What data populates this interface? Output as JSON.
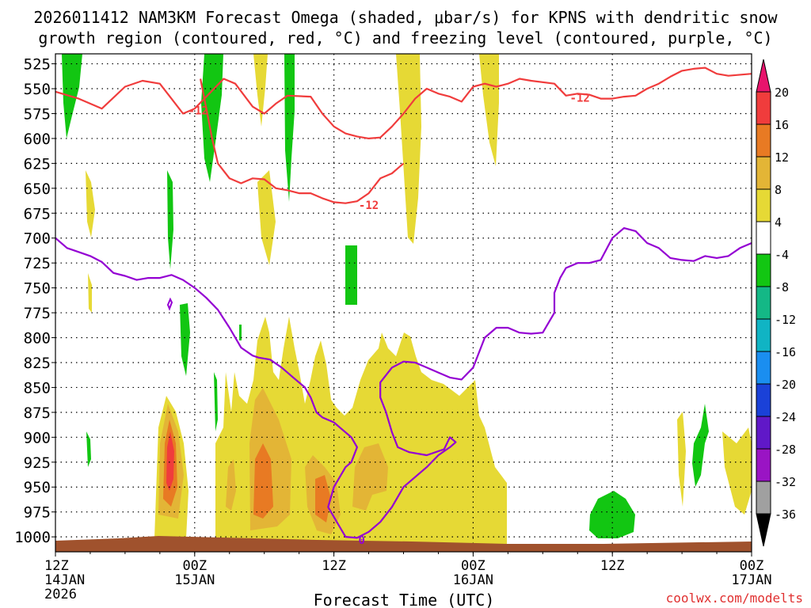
{
  "chart_data": {
    "type": "time-height",
    "title_line1": "2026011412 NAM3KM Forecast Omega (shaded, μbar/s) for KPNS with dendritic snow",
    "title_line2": "growth region (contoured, red, °C) and freezing level (contoured, purple, °C)",
    "xlabel": "Forecast Time (UTC)",
    "credit": "coolwx.com/modelts",
    "x_range_hours": [
      0,
      60
    ],
    "y_range_mb": [
      515,
      1015
    ],
    "x_ticks": [
      {
        "h": 0,
        "lines": [
          "12Z",
          "14JAN",
          "2026"
        ]
      },
      {
        "h": 12,
        "lines": [
          "00Z",
          "15JAN"
        ]
      },
      {
        "h": 24,
        "lines": [
          "12Z"
        ]
      },
      {
        "h": 36,
        "lines": [
          "00Z",
          "16JAN"
        ]
      },
      {
        "h": 48,
        "lines": [
          "12Z"
        ]
      },
      {
        "h": 60,
        "lines": [
          "00Z",
          "17JAN"
        ]
      }
    ],
    "y_ticks": [
      525,
      550,
      575,
      600,
      625,
      650,
      675,
      700,
      725,
      750,
      775,
      800,
      825,
      850,
      875,
      900,
      925,
      950,
      975,
      1000
    ],
    "colorbar": {
      "labels": [
        "20",
        "16",
        "12",
        "8",
        "4",
        "-4",
        "-8",
        "-12",
        "-16",
        "-20",
        "-24",
        "-28",
        "-32",
        "-36"
      ],
      "colors_top_to_bottom": [
        "#e8146c",
        "#f03c3c",
        "#e87a23",
        "#e3b536",
        "#e6d935",
        "#ffffff",
        "#12c612",
        "#14b886",
        "#10b4c4",
        "#1a8ef0",
        "#1a41d8",
        "#6018c8",
        "#9a14c4",
        "#a0a0a0",
        "#000000"
      ]
    },
    "ground_color": "#a0522d",
    "series": [
      {
        "name": "-12 C isotherm (upper)",
        "color": "#f03c3c",
        "label": "-12",
        "points": [
          [
            0,
            553
          ],
          [
            2,
            560
          ],
          [
            4,
            570
          ],
          [
            6,
            548
          ],
          [
            7.5,
            542
          ],
          [
            9,
            545
          ],
          [
            10,
            560
          ],
          [
            11,
            575
          ],
          [
            12,
            570
          ],
          [
            13,
            558
          ],
          [
            14.5,
            540
          ],
          [
            15.5,
            545
          ],
          [
            17,
            568
          ],
          [
            18,
            575
          ],
          [
            19,
            565
          ],
          [
            20,
            557
          ],
          [
            22,
            558
          ],
          [
            23,
            575
          ],
          [
            24,
            588
          ],
          [
            25,
            595
          ],
          [
            26,
            598
          ],
          [
            27,
            600
          ],
          [
            28,
            599
          ],
          [
            29,
            588
          ],
          [
            30,
            575
          ],
          [
            31,
            560
          ],
          [
            32,
            550
          ],
          [
            33,
            555
          ],
          [
            34,
            558
          ],
          [
            35,
            563
          ],
          [
            36,
            548
          ],
          [
            37,
            545
          ],
          [
            38,
            548
          ],
          [
            39,
            545
          ],
          [
            40,
            540
          ],
          [
            41,
            542
          ],
          [
            43,
            545
          ],
          [
            44,
            557
          ],
          [
            45,
            555
          ],
          [
            46,
            556
          ],
          [
            47,
            560
          ],
          [
            48,
            560
          ],
          [
            49,
            558
          ],
          [
            50,
            557
          ],
          [
            51,
            550
          ],
          [
            52,
            545
          ],
          [
            53,
            538
          ],
          [
            54,
            532
          ],
          [
            55,
            530
          ],
          [
            56,
            529
          ],
          [
            57,
            535
          ],
          [
            58,
            537
          ],
          [
            60,
            535
          ]
        ]
      },
      {
        "name": "-12 C isotherm (lower)",
        "color": "#f03c3c",
        "label": "-12",
        "points": [
          [
            12.5,
            540
          ],
          [
            13,
            570
          ],
          [
            13.5,
            600
          ],
          [
            14,
            625
          ],
          [
            15,
            640
          ],
          [
            16,
            645
          ],
          [
            17,
            640
          ],
          [
            18,
            641
          ],
          [
            19,
            650
          ],
          [
            20,
            652
          ],
          [
            21,
            655
          ],
          [
            22,
            655
          ],
          [
            23,
            660
          ],
          [
            24,
            664
          ],
          [
            25,
            665
          ],
          [
            26,
            663
          ],
          [
            27,
            655
          ],
          [
            28,
            640
          ],
          [
            29,
            635
          ],
          [
            29.5,
            630
          ],
          [
            30,
            625
          ]
        ]
      },
      {
        "name": "0 C freezing level",
        "color": "#9400d3",
        "label": "0",
        "points": [
          [
            0,
            700
          ],
          [
            1,
            710
          ],
          [
            2,
            714
          ],
          [
            3,
            718
          ],
          [
            4,
            724
          ],
          [
            5,
            735
          ],
          [
            6,
            738
          ],
          [
            7,
            742
          ],
          [
            8,
            740
          ],
          [
            9,
            740
          ],
          [
            10,
            737
          ],
          [
            11,
            742
          ],
          [
            12,
            750
          ],
          [
            13,
            760
          ],
          [
            14,
            772
          ],
          [
            15,
            790
          ],
          [
            16,
            810
          ],
          [
            17,
            818
          ],
          [
            17.5,
            820
          ],
          [
            18.5,
            822
          ],
          [
            19.5,
            830
          ],
          [
            20.5,
            840
          ],
          [
            21.5,
            850
          ],
          [
            22,
            860
          ],
          [
            22.5,
            875
          ],
          [
            23,
            880
          ],
          [
            24,
            885
          ],
          [
            24.5,
            890
          ],
          [
            25.5,
            900
          ],
          [
            26,
            910
          ],
          [
            25.5,
            925
          ],
          [
            25,
            930
          ],
          [
            24,
            950
          ],
          [
            23.5,
            970
          ],
          [
            24.5,
            990
          ],
          [
            25,
            1000
          ],
          [
            26,
            1001
          ],
          [
            27,
            995
          ],
          [
            28,
            985
          ],
          [
            29,
            970
          ],
          [
            30,
            950
          ],
          [
            31,
            940
          ],
          [
            32,
            930
          ],
          [
            33,
            918
          ],
          [
            34,
            910
          ],
          [
            34.5,
            905
          ],
          [
            34,
            900
          ],
          [
            33.5,
            912
          ],
          [
            32,
            918
          ],
          [
            30.5,
            915
          ],
          [
            29.5,
            910
          ],
          [
            29,
            895
          ],
          [
            28.5,
            875
          ],
          [
            28,
            860
          ],
          [
            28,
            845
          ],
          [
            29,
            830
          ],
          [
            30,
            824
          ],
          [
            31,
            825
          ],
          [
            32,
            830
          ],
          [
            33,
            835
          ],
          [
            34,
            840
          ],
          [
            35,
            842
          ],
          [
            36,
            830
          ],
          [
            37,
            800
          ],
          [
            38,
            790
          ],
          [
            39,
            790
          ],
          [
            40,
            795
          ],
          [
            41,
            796
          ],
          [
            42,
            795
          ],
          [
            43,
            775
          ],
          [
            43,
            755
          ],
          [
            43.5,
            740
          ],
          [
            44,
            730
          ],
          [
            45,
            725
          ],
          [
            46,
            725
          ],
          [
            47,
            722
          ],
          [
            48,
            700
          ],
          [
            49,
            690
          ],
          [
            50,
            693
          ],
          [
            51,
            705
          ],
          [
            52,
            710
          ],
          [
            53,
            720
          ],
          [
            54,
            722
          ],
          [
            55,
            723
          ],
          [
            56,
            718
          ],
          [
            57,
            720
          ],
          [
            58,
            718
          ],
          [
            59,
            710
          ],
          [
            60,
            705
          ]
        ]
      }
    ],
    "omega_regions": [
      {
        "sign": "+",
        "level_min": 4,
        "desc": "yellow ascent, 1000-750 mb, hours 15-34"
      },
      {
        "sign": "+",
        "level_min": 8,
        "desc": "orange cores near 900-950 mb, hours 10, 18, 21, 24, 27"
      },
      {
        "sign": "+",
        "level_min": 16,
        "desc": "red core near 900 mb, hour 10"
      },
      {
        "sign": "-",
        "level_min": -4,
        "desc": "green descent near 975 mb, hour 48"
      }
    ]
  }
}
